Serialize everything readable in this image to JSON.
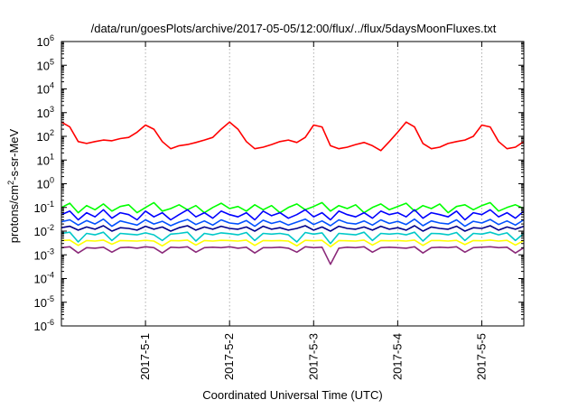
{
  "chart_data": {
    "type": "line",
    "title": "/data/run/goesPlots/archive/2017-05-05/12:00/flux/../flux/5daysMoonFluxes.txt",
    "xlabel": "Coordinated Universal Time (UTC)",
    "ylabel": "protons/cm²-s-sr-MeV",
    "ylabel_parts": {
      "before": "protons/cm",
      "sup": "2",
      "after": "-s-sr-MeV"
    },
    "y_scale": "log",
    "ylim_exponents": [
      -6,
      6
    ],
    "y_ticks": [
      {
        "base": "10",
        "exp": "-6"
      },
      {
        "base": "10",
        "exp": "-5"
      },
      {
        "base": "10",
        "exp": "-4"
      },
      {
        "base": "10",
        "exp": "-3"
      },
      {
        "base": "10",
        "exp": "-2"
      },
      {
        "base": "10",
        "exp": "-1"
      },
      {
        "base": "10",
        "exp": "0"
      },
      {
        "base": "10",
        "exp": "1"
      },
      {
        "base": "10",
        "exp": "2"
      },
      {
        "base": "10",
        "exp": "3"
      },
      {
        "base": "10",
        "exp": "4"
      },
      {
        "base": "10",
        "exp": "5"
      },
      {
        "base": "10",
        "exp": "6"
      }
    ],
    "x_ticks": [
      "2017-5-1",
      "2017-5-2",
      "2017-5-3",
      "2017-5-4",
      "2017-5-5"
    ],
    "x_tick_positions_days": [
      1,
      2,
      3,
      4,
      5
    ],
    "xlim_days": [
      0.0,
      5.5
    ],
    "grid": true,
    "legend": "none",
    "series": [
      {
        "color": "#ff0000",
        "x": [
          0.0,
          0.1,
          0.2,
          0.3,
          0.4,
          0.5,
          0.6,
          0.7,
          0.8,
          0.9,
          1.0,
          1.1,
          1.2,
          1.3,
          1.4,
          1.5,
          1.6,
          1.7,
          1.8,
          1.9,
          2.0,
          2.1,
          2.2,
          2.3,
          2.4,
          2.5,
          2.6,
          2.7,
          2.8,
          2.9,
          3.0,
          3.1,
          3.2,
          3.3,
          3.4,
          3.5,
          3.6,
          3.7,
          3.8,
          3.9,
          4.0,
          4.1,
          4.2,
          4.3,
          4.4,
          4.5,
          4.6,
          4.7,
          4.8,
          4.9,
          5.0,
          5.1,
          5.2,
          5.3,
          5.4,
          5.5
        ],
        "values": [
          400,
          250,
          60,
          50,
          60,
          70,
          65,
          80,
          90,
          150,
          300,
          200,
          60,
          30,
          40,
          45,
          55,
          70,
          90,
          200,
          400,
          200,
          60,
          30,
          35,
          45,
          60,
          70,
          55,
          90,
          300,
          250,
          40,
          30,
          35,
          45,
          55,
          40,
          25,
          60,
          150,
          400,
          250,
          50,
          30,
          35,
          50,
          60,
          70,
          100,
          300,
          250,
          60,
          30,
          35,
          60
        ]
      },
      {
        "color": "#00ff00",
        "x": [
          0.0,
          0.1,
          0.2,
          0.3,
          0.4,
          0.5,
          0.6,
          0.7,
          0.8,
          0.9,
          1.0,
          1.1,
          1.2,
          1.3,
          1.4,
          1.5,
          1.6,
          1.7,
          1.8,
          1.9,
          2.0,
          2.1,
          2.2,
          2.3,
          2.4,
          2.5,
          2.6,
          2.7,
          2.8,
          2.9,
          3.0,
          3.1,
          3.2,
          3.3,
          3.4,
          3.5,
          3.6,
          3.7,
          3.8,
          3.9,
          4.0,
          4.1,
          4.2,
          4.3,
          4.4,
          4.5,
          4.6,
          4.7,
          4.8,
          4.9,
          5.0,
          5.1,
          5.2,
          5.3,
          5.4,
          5.5
        ],
        "values": [
          0.1,
          0.15,
          0.06,
          0.12,
          0.08,
          0.14,
          0.07,
          0.11,
          0.13,
          0.06,
          0.1,
          0.16,
          0.07,
          0.09,
          0.13,
          0.08,
          0.12,
          0.06,
          0.1,
          0.15,
          0.09,
          0.11,
          0.07,
          0.13,
          0.08,
          0.12,
          0.06,
          0.1,
          0.14,
          0.08,
          0.11,
          0.16,
          0.07,
          0.12,
          0.09,
          0.13,
          0.06,
          0.1,
          0.14,
          0.08,
          0.11,
          0.15,
          0.07,
          0.12,
          0.09,
          0.14,
          0.06,
          0.11,
          0.13,
          0.08,
          0.12,
          0.16,
          0.07,
          0.1,
          0.13,
          0.09
        ]
      },
      {
        "color": "#0000ff",
        "x": [
          0.0,
          0.1,
          0.2,
          0.3,
          0.4,
          0.5,
          0.6,
          0.7,
          0.8,
          0.9,
          1.0,
          1.1,
          1.2,
          1.3,
          1.4,
          1.5,
          1.6,
          1.7,
          1.8,
          1.9,
          2.0,
          2.1,
          2.2,
          2.3,
          2.4,
          2.5,
          2.6,
          2.7,
          2.8,
          2.9,
          3.0,
          3.1,
          3.2,
          3.3,
          3.4,
          3.5,
          3.6,
          3.7,
          3.8,
          3.9,
          4.0,
          4.1,
          4.2,
          4.3,
          4.4,
          4.5,
          4.6,
          4.7,
          4.8,
          4.9,
          5.0,
          5.1,
          5.2,
          5.3,
          5.4,
          5.5
        ],
        "values": [
          0.05,
          0.07,
          0.03,
          0.06,
          0.04,
          0.08,
          0.035,
          0.06,
          0.05,
          0.03,
          0.07,
          0.04,
          0.06,
          0.03,
          0.05,
          0.08,
          0.04,
          0.06,
          0.035,
          0.07,
          0.05,
          0.04,
          0.06,
          0.03,
          0.07,
          0.045,
          0.06,
          0.035,
          0.05,
          0.08,
          0.04,
          0.06,
          0.03,
          0.07,
          0.05,
          0.04,
          0.06,
          0.035,
          0.07,
          0.05,
          0.06,
          0.04,
          0.08,
          0.035,
          0.06,
          0.05,
          0.04,
          0.07,
          0.03,
          0.06,
          0.05,
          0.08,
          0.04,
          0.06,
          0.035,
          0.07
        ]
      },
      {
        "color": "#0050ff",
        "x": [
          0.0,
          0.1,
          0.2,
          0.3,
          0.4,
          0.5,
          0.6,
          0.7,
          0.8,
          0.9,
          1.0,
          1.1,
          1.2,
          1.3,
          1.4,
          1.5,
          1.6,
          1.7,
          1.8,
          1.9,
          2.0,
          2.1,
          2.2,
          2.3,
          2.4,
          2.5,
          2.6,
          2.7,
          2.8,
          2.9,
          3.0,
          3.1,
          3.2,
          3.3,
          3.4,
          3.5,
          3.6,
          3.7,
          3.8,
          3.9,
          4.0,
          4.1,
          4.2,
          4.3,
          4.4,
          4.5,
          4.6,
          4.7,
          4.8,
          4.9,
          5.0,
          5.1,
          5.2,
          5.3,
          5.4,
          5.5
        ],
        "values": [
          0.025,
          0.03,
          0.018,
          0.028,
          0.02,
          0.032,
          0.016,
          0.027,
          0.022,
          0.018,
          0.03,
          0.02,
          0.026,
          0.017,
          0.024,
          0.031,
          0.019,
          0.027,
          0.018,
          0.03,
          0.022,
          0.02,
          0.028,
          0.016,
          0.029,
          0.021,
          0.026,
          0.018,
          0.024,
          0.032,
          0.019,
          0.027,
          0.017,
          0.03,
          0.022,
          0.02,
          0.027,
          0.018,
          0.03,
          0.021,
          0.026,
          0.019,
          0.032,
          0.017,
          0.027,
          0.022,
          0.02,
          0.03,
          0.016,
          0.026,
          0.022,
          0.031,
          0.019,
          0.027,
          0.018,
          0.03
        ]
      },
      {
        "color": "#00008b",
        "x": [
          0.0,
          0.1,
          0.2,
          0.3,
          0.4,
          0.5,
          0.6,
          0.7,
          0.8,
          0.9,
          1.0,
          1.1,
          1.2,
          1.3,
          1.4,
          1.5,
          1.6,
          1.7,
          1.8,
          1.9,
          2.0,
          2.1,
          2.2,
          2.3,
          2.4,
          2.5,
          2.6,
          2.7,
          2.8,
          2.9,
          3.0,
          3.1,
          3.2,
          3.3,
          3.4,
          3.5,
          3.6,
          3.7,
          3.8,
          3.9,
          4.0,
          4.1,
          4.2,
          4.3,
          4.4,
          4.5,
          4.6,
          4.7,
          4.8,
          4.9,
          5.0,
          5.1,
          5.2,
          5.3,
          5.4,
          5.5
        ],
        "values": [
          0.014,
          0.016,
          0.011,
          0.015,
          0.012,
          0.017,
          0.01,
          0.014,
          0.013,
          0.011,
          0.016,
          0.012,
          0.015,
          0.01,
          0.014,
          0.017,
          0.011,
          0.015,
          0.012,
          0.016,
          0.013,
          0.012,
          0.015,
          0.01,
          0.016,
          0.012,
          0.014,
          0.011,
          0.013,
          0.017,
          0.011,
          0.015,
          0.01,
          0.016,
          0.013,
          0.012,
          0.015,
          0.011,
          0.016,
          0.012,
          0.014,
          0.011,
          0.017,
          0.01,
          0.015,
          0.013,
          0.012,
          0.016,
          0.01,
          0.014,
          0.013,
          0.017,
          0.011,
          0.015,
          0.012,
          0.016
        ]
      },
      {
        "color": "#00c8c8",
        "x": [
          0.0,
          0.1,
          0.2,
          0.3,
          0.4,
          0.5,
          0.6,
          0.7,
          0.8,
          0.9,
          1.0,
          1.1,
          1.2,
          1.3,
          1.4,
          1.5,
          1.6,
          1.7,
          1.8,
          1.9,
          2.0,
          2.1,
          2.2,
          2.3,
          2.4,
          2.5,
          2.6,
          2.7,
          2.8,
          2.9,
          3.0,
          3.1,
          3.2,
          3.3,
          3.4,
          3.5,
          3.6,
          3.7,
          3.8,
          3.9,
          4.0,
          4.1,
          4.2,
          4.3,
          4.4,
          4.5,
          4.6,
          4.7,
          4.8,
          4.9,
          5.0,
          5.1,
          5.2,
          5.3,
          5.4,
          5.5
        ],
        "values": [
          0.008,
          0.009,
          0.0035,
          0.008,
          0.007,
          0.009,
          0.004,
          0.008,
          0.0075,
          0.007,
          0.0085,
          0.007,
          0.004,
          0.0075,
          0.008,
          0.009,
          0.0038,
          0.008,
          0.007,
          0.0085,
          0.0078,
          0.007,
          0.0088,
          0.004,
          0.008,
          0.0075,
          0.008,
          0.007,
          0.0035,
          0.0088,
          0.0075,
          0.0085,
          0.003,
          0.008,
          0.0075,
          0.007,
          0.009,
          0.004,
          0.008,
          0.0075,
          0.008,
          0.007,
          0.009,
          0.0038,
          0.008,
          0.0078,
          0.007,
          0.0088,
          0.004,
          0.008,
          0.0075,
          0.009,
          0.007,
          0.0085,
          0.004,
          0.008
        ]
      },
      {
        "color": "#ffff00",
        "x": [
          0.0,
          0.1,
          0.2,
          0.3,
          0.4,
          0.5,
          0.6,
          0.7,
          0.8,
          0.9,
          1.0,
          1.1,
          1.2,
          1.3,
          1.4,
          1.5,
          1.6,
          1.7,
          1.8,
          1.9,
          2.0,
          2.1,
          2.2,
          2.3,
          2.4,
          2.5,
          2.6,
          2.7,
          2.8,
          2.9,
          3.0,
          3.1,
          3.2,
          3.3,
          3.4,
          3.5,
          3.6,
          3.7,
          3.8,
          3.9,
          4.0,
          4.1,
          4.2,
          4.3,
          4.4,
          4.5,
          4.6,
          4.7,
          4.8,
          4.9,
          5.0,
          5.1,
          5.2,
          5.3,
          5.4,
          5.5
        ],
        "values": [
          0.004,
          0.0042,
          0.0025,
          0.004,
          0.0038,
          0.0042,
          0.0028,
          0.004,
          0.0039,
          0.0038,
          0.0041,
          0.0038,
          0.0024,
          0.004,
          0.0039,
          0.0042,
          0.0026,
          0.004,
          0.0038,
          0.0041,
          0.004,
          0.0038,
          0.0042,
          0.0025,
          0.004,
          0.0039,
          0.004,
          0.0038,
          0.0024,
          0.0041,
          0.0039,
          0.0041,
          0.0022,
          0.004,
          0.0039,
          0.0038,
          0.0042,
          0.0026,
          0.004,
          0.0039,
          0.004,
          0.0038,
          0.0042,
          0.0025,
          0.004,
          0.004,
          0.0038,
          0.0041,
          0.0027,
          0.004,
          0.0039,
          0.0042,
          0.0038,
          0.0041,
          0.0026,
          0.004
        ]
      },
      {
        "color": "#8b2a7a",
        "x": [
          0.0,
          0.1,
          0.2,
          0.3,
          0.4,
          0.5,
          0.6,
          0.7,
          0.8,
          0.9,
          1.0,
          1.1,
          1.2,
          1.3,
          1.4,
          1.5,
          1.6,
          1.7,
          1.8,
          1.9,
          2.0,
          2.1,
          2.2,
          2.3,
          2.4,
          2.5,
          2.6,
          2.7,
          2.8,
          2.9,
          3.0,
          3.1,
          3.2,
          3.3,
          3.4,
          3.5,
          3.6,
          3.7,
          3.8,
          3.9,
          4.0,
          4.1,
          4.2,
          4.3,
          4.4,
          4.5,
          4.6,
          4.7,
          4.8,
          4.9,
          5.0,
          5.1,
          5.2,
          5.3,
          5.4,
          5.5
        ],
        "values": [
          0.002,
          0.0022,
          0.0012,
          0.002,
          0.0019,
          0.0021,
          0.0013,
          0.002,
          0.0021,
          0.0019,
          0.0022,
          0.002,
          0.0012,
          0.0021,
          0.002,
          0.0022,
          0.0013,
          0.002,
          0.0021,
          0.002,
          0.0022,
          0.0019,
          0.0021,
          0.0012,
          0.002,
          0.002,
          0.0021,
          0.0019,
          0.0013,
          0.0022,
          0.002,
          0.0021,
          0.0004,
          0.0019,
          0.0021,
          0.002,
          0.0022,
          0.0013,
          0.002,
          0.0021,
          0.002,
          0.0019,
          0.0022,
          0.0012,
          0.002,
          0.0021,
          0.002,
          0.0022,
          0.0013,
          0.002,
          0.0021,
          0.0022,
          0.002,
          0.0021,
          0.0012,
          0.002
        ]
      }
    ]
  }
}
